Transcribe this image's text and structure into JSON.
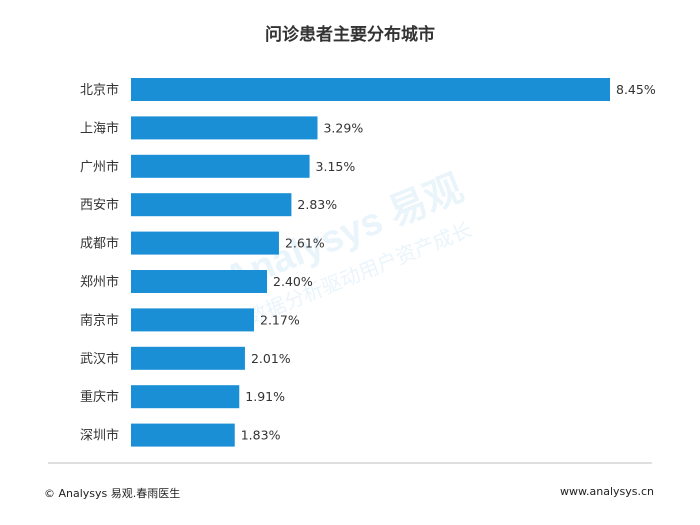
{
  "chart_data": {
    "type": "bar",
    "orientation": "horizontal",
    "title": "问诊患者主要分布城市",
    "categories": [
      "北京市",
      "上海市",
      "广州市",
      "西安市",
      "成都市",
      "郑州市",
      "南京市",
      "武汉市",
      "重庆市",
      "深圳市"
    ],
    "values": [
      8.45,
      3.29,
      3.15,
      2.83,
      2.61,
      2.4,
      2.17,
      2.01,
      1.91,
      1.83
    ],
    "value_labels": [
      "8.45%",
      "3.29%",
      "3.15%",
      "2.83%",
      "2.61%",
      "2.40%",
      "2.17%",
      "2.01%",
      "1.91%",
      "1.83%"
    ],
    "xlim": [
      0,
      8.45
    ],
    "grid": false,
    "bar_color": "#1a8fd6"
  },
  "watermark": {
    "brand": "Analysys 易观",
    "slogan": "数据分析驱动用户资产成长"
  },
  "footer": {
    "left": "© Analysys 易观.春雨医生",
    "right": "www.analysys.cn"
  }
}
